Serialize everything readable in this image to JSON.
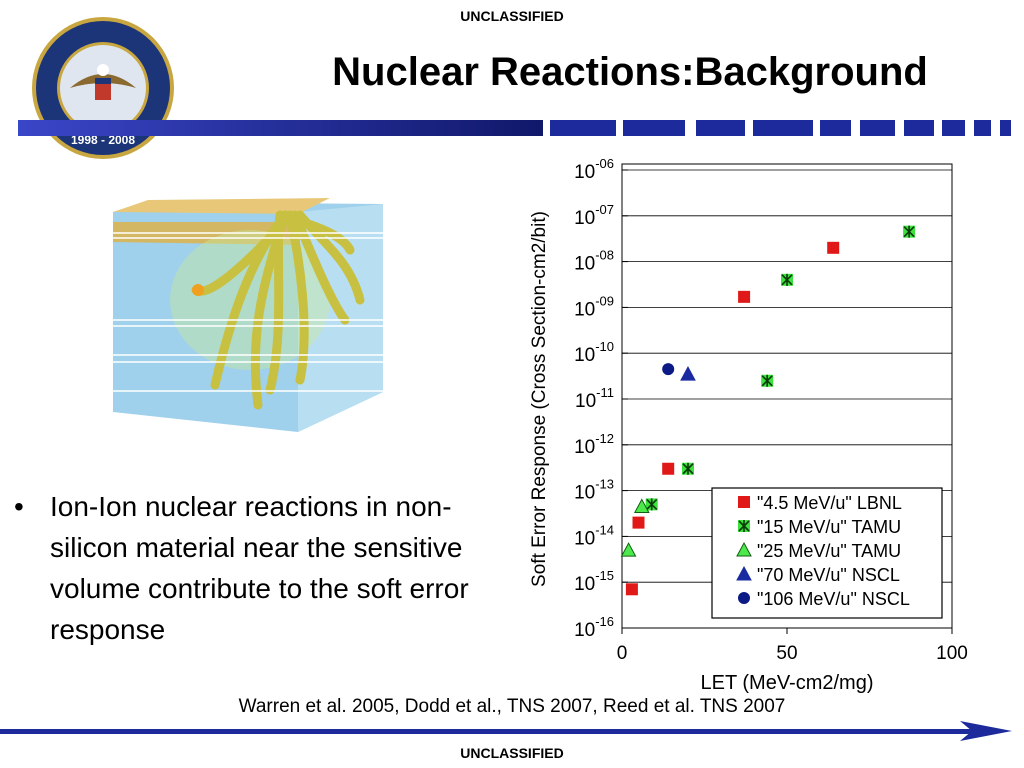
{
  "header": {
    "classification": "UNCLASSIFIED",
    "title": "Nuclear Reactions:Background"
  },
  "logo": {
    "years": "1998 - 2008"
  },
  "bullet": "Ion-Ion nuclear reactions in non-silicon material near the sensitive volume contribute to the soft error response",
  "citation": "Warren et al. 2005, Dodd et al., TNS 2007, Reed et al. TNS 2007",
  "footer": {
    "classification": "UNCLASSIFIED"
  },
  "chart_data": {
    "type": "scatter",
    "xlabel": "LET (MeV-cm2/mg)",
    "ylabel": "Soft Error Response (Cross Section-cm2/bit)",
    "xlim": [
      0,
      100
    ],
    "xticks": [
      0,
      50,
      100
    ],
    "ylim": [
      1e-16,
      1e-06
    ],
    "ylog": true,
    "grid": true,
    "legend": "lower right",
    "yticks": [
      {
        "value": 1e-06,
        "label": "10-06"
      },
      {
        "value": 1e-07,
        "label": "10-07"
      },
      {
        "value": 1e-08,
        "label": "10-08"
      },
      {
        "value": 1e-09,
        "label": "10-09"
      },
      {
        "value": 1e-10,
        "label": "10-10"
      },
      {
        "value": 1e-11,
        "label": "10-11"
      },
      {
        "value": 1e-12,
        "label": "10-12"
      },
      {
        "value": 1e-13,
        "label": "10-13"
      },
      {
        "value": 1e-14,
        "label": "10-14"
      },
      {
        "value": 1e-15,
        "label": "10-15"
      },
      {
        "value": 1e-16,
        "label": "10-16"
      }
    ],
    "series": [
      {
        "name": "\"4.5 MeV/u\" LBNL",
        "color": "#e01818",
        "marker": "square",
        "x": [
          3,
          5,
          14,
          37,
          64
        ],
        "values": [
          7e-16,
          2e-14,
          3e-13,
          1.7e-09,
          2e-08
        ]
      },
      {
        "name": "\"15 MeV/u\" TAMU",
        "color": "#3ee03e",
        "marker": "asterisk",
        "x": [
          9,
          20,
          44,
          50,
          87
        ],
        "values": [
          5e-14,
          3e-13,
          2.5e-11,
          4e-09,
          4.5e-08
        ]
      },
      {
        "name": "\"25 MeV/u\" TAMU",
        "color": "#4ce84c",
        "marker": "triangle",
        "x": [
          2,
          6
        ],
        "values": [
          5e-15,
          4.5e-14
        ]
      },
      {
        "name": "\"70 MeV/u\" NSCL",
        "color": "#1a2aa0",
        "marker": "triangle",
        "x": [
          20
        ],
        "values": [
          3.5e-11
        ]
      },
      {
        "name": "\"106 MeV/u\" NSCL",
        "color": "#0c1a86",
        "marker": "circle",
        "x": [
          14
        ],
        "values": [
          4.5e-11
        ]
      }
    ]
  }
}
